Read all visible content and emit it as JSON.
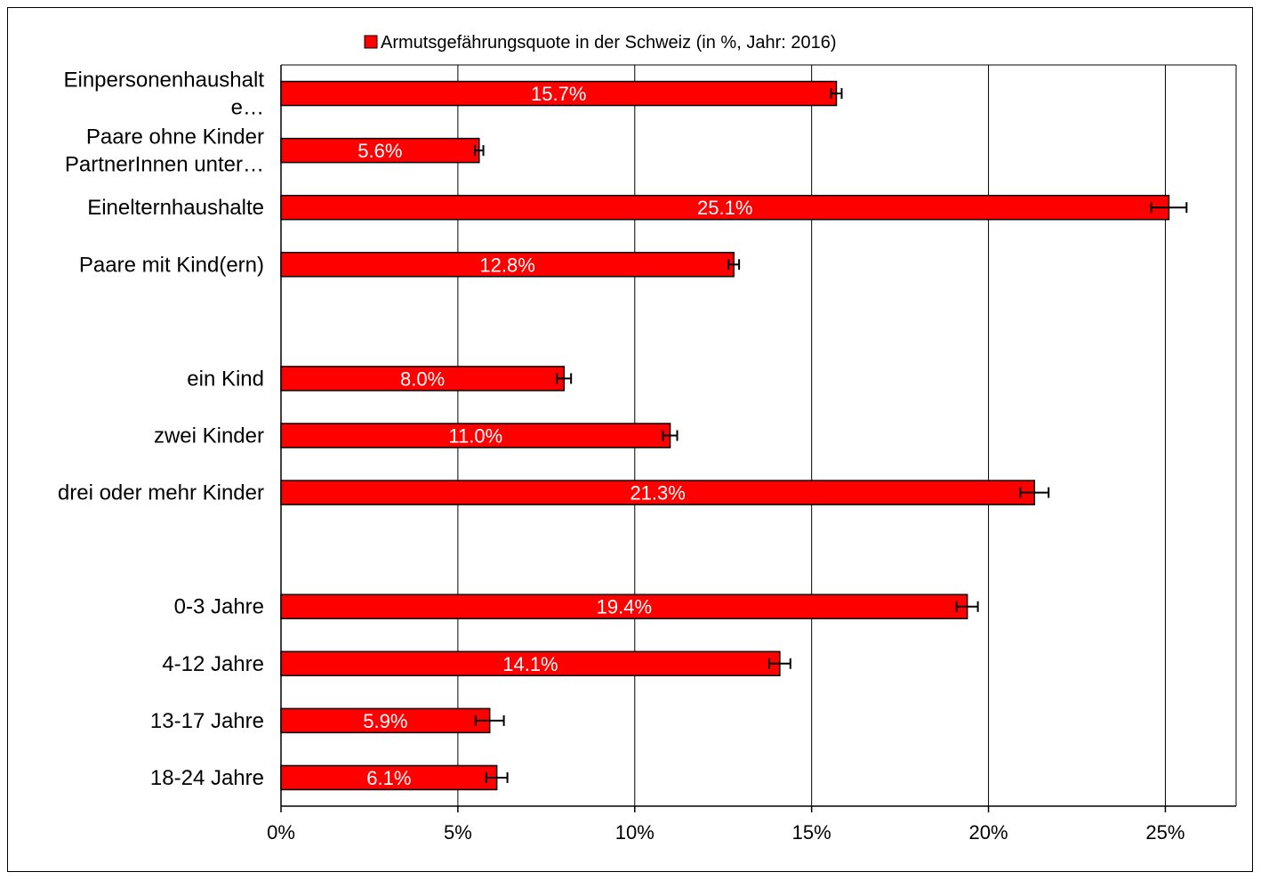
{
  "chart_data": {
    "type": "bar",
    "orientation": "horizontal",
    "legend": {
      "label": "Armutsgefährungsquote in der Schweiz (in %, Jahr: 2016)",
      "position": "top"
    },
    "categories": [
      [
        "Einpersonenhaushalt",
        "e…"
      ],
      [
        "Paare ohne Kinder",
        "PartnerInnen unter…"
      ],
      [
        "Einelternhaushalte"
      ],
      [
        "Paare mit Kind(ern)"
      ],
      [],
      [
        "ein Kind"
      ],
      [
        "zwei Kinder"
      ],
      [
        "drei oder mehr Kinder"
      ],
      [],
      [
        "0-3 Jahre"
      ],
      [
        "4-12 Jahre"
      ],
      [
        "13-17 Jahre"
      ],
      [
        "18-24 Jahre"
      ]
    ],
    "values": [
      15.7,
      5.6,
      25.1,
      12.8,
      null,
      8.0,
      11.0,
      21.3,
      null,
      19.4,
      14.1,
      5.9,
      6.1
    ],
    "data_labels": [
      "15.7%",
      "5.6%",
      "25.1%",
      "12.8%",
      "",
      "8.0%",
      "11.0%",
      "21.3%",
      "",
      "19.4%",
      "14.1%",
      "5.9%",
      "6.1%"
    ],
    "error": [
      0.15,
      0.12,
      0.5,
      0.15,
      null,
      0.2,
      0.2,
      0.4,
      null,
      0.3,
      0.3,
      0.4,
      0.3
    ],
    "x_ticks": [
      0,
      5,
      10,
      15,
      20,
      25
    ],
    "x_tick_labels": [
      "0%",
      "5%",
      "10%",
      "15%",
      "20%",
      "25%"
    ],
    "xlim": [
      0,
      27
    ],
    "grid": "vertical",
    "colors": {
      "bar": "#ff0000",
      "bar_edge": "#000000",
      "grid": "#000000"
    }
  }
}
